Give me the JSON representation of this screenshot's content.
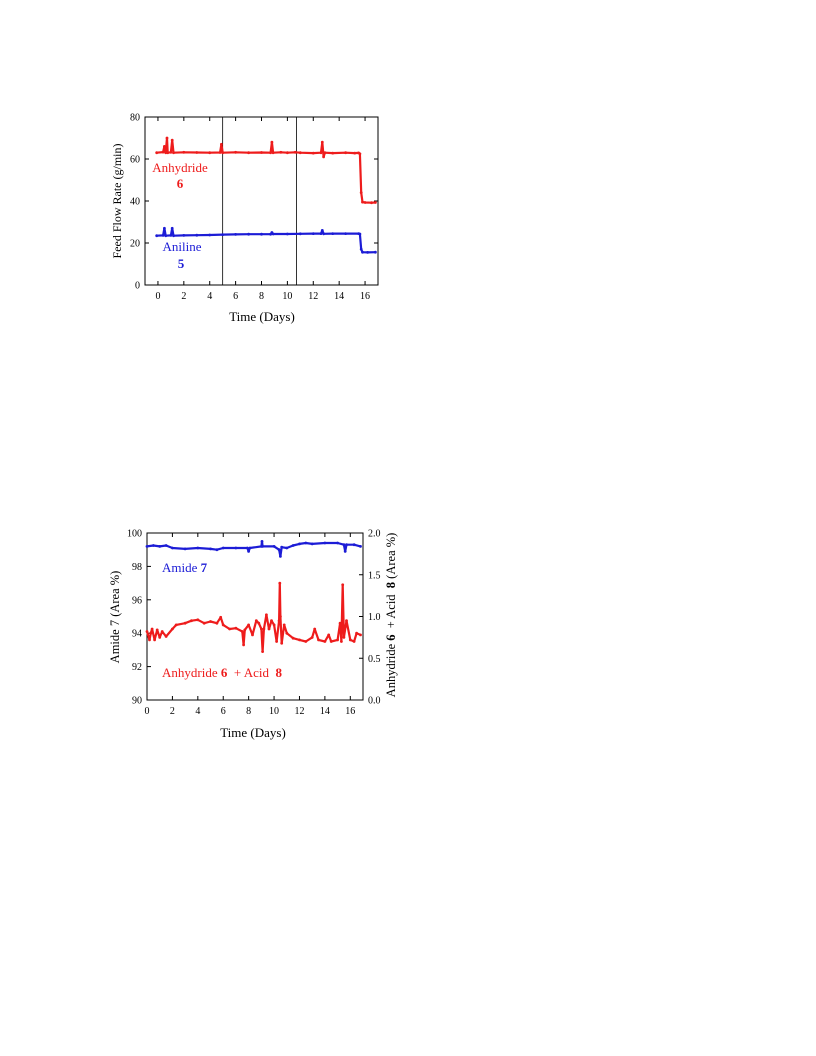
{
  "colors": {
    "red": "#ee1c1c",
    "blue": "#1c1cd6",
    "axis": "#000000"
  },
  "chart_data": [
    {
      "type": "line",
      "ylabel": "Feed Flow Rate (g/min)",
      "xlabel": "Time (Days)",
      "xlim": [
        -1,
        17
      ],
      "ylim": [
        0,
        80
      ],
      "xticks": [
        "0",
        "2",
        "4",
        "6",
        "8",
        "10",
        "12",
        "14",
        "16"
      ],
      "yticks": [
        "0",
        "20",
        "40",
        "60",
        "80"
      ],
      "vlines_x": [
        5.0,
        10.7
      ],
      "annotations": [
        {
          "text": "Anhydride",
          "bold": "6",
          "color": "red"
        },
        {
          "text": "Aniline",
          "bold": "5",
          "color": "blue"
        }
      ],
      "series": [
        {
          "label": "Anhydride 6",
          "color": "red",
          "points": [
            [
              -0.1,
              63
            ],
            [
              0.4,
              63.3
            ],
            [
              0.5,
              66
            ],
            [
              0.6,
              63
            ],
            [
              0.7,
              70
            ],
            [
              0.75,
              63
            ],
            [
              1.0,
              63.2
            ],
            [
              1.1,
              69
            ],
            [
              1.2,
              63
            ],
            [
              2,
              63.2
            ],
            [
              3,
              63.1
            ],
            [
              4,
              63
            ],
            [
              4.8,
              63.1
            ],
            [
              4.9,
              67
            ],
            [
              5.0,
              63
            ],
            [
              6,
              63.2
            ],
            [
              7,
              63
            ],
            [
              8,
              63.1
            ],
            [
              8.7,
              63
            ],
            [
              8.8,
              68
            ],
            [
              8.9,
              63
            ],
            [
              9.5,
              63.2
            ],
            [
              10,
              63
            ],
            [
              10.6,
              63.2
            ],
            [
              11,
              63
            ],
            [
              12,
              62.8
            ],
            [
              12.6,
              63
            ],
            [
              12.7,
              68
            ],
            [
              12.8,
              61
            ],
            [
              12.9,
              63
            ],
            [
              13.5,
              62.8
            ],
            [
              14.5,
              63
            ],
            [
              15.2,
              62.8
            ],
            [
              15.5,
              62.9
            ],
            [
              15.6,
              62.5
            ],
            [
              15.7,
              44
            ],
            [
              15.8,
              39.5
            ],
            [
              16,
              39.3
            ],
            [
              16.5,
              39.2
            ],
            [
              16.8,
              39.3
            ]
          ]
        },
        {
          "label": "Aniline 5",
          "color": "blue",
          "points": [
            [
              -0.1,
              23.5
            ],
            [
              0.4,
              23.6
            ],
            [
              0.5,
              27
            ],
            [
              0.6,
              23.5
            ],
            [
              1.0,
              23.6
            ],
            [
              1.1,
              27
            ],
            [
              1.2,
              23.5
            ],
            [
              2,
              23.6
            ],
            [
              3,
              23.7
            ],
            [
              4,
              23.8
            ],
            [
              5,
              24
            ],
            [
              6,
              24.1
            ],
            [
              7,
              24.2
            ],
            [
              8,
              24.2
            ],
            [
              8.7,
              24.2
            ],
            [
              8.8,
              25
            ],
            [
              8.9,
              24.3
            ],
            [
              10,
              24.3
            ],
            [
              11,
              24.4
            ],
            [
              12,
              24.5
            ],
            [
              12.6,
              24.5
            ],
            [
              12.7,
              26
            ],
            [
              12.8,
              24.4
            ],
            [
              13.5,
              24.5
            ],
            [
              14.5,
              24.5
            ],
            [
              15.5,
              24.5
            ],
            [
              15.6,
              24.3
            ],
            [
              15.7,
              17
            ],
            [
              15.8,
              15.6
            ],
            [
              16.2,
              15.5
            ],
            [
              16.8,
              15.6
            ]
          ]
        }
      ]
    },
    {
      "type": "line",
      "ylabel": "Amide 7 (Area %)",
      "y2label": "Anhydride 6 + Acid 8 (Area %)",
      "xlabel": "Time (Days)",
      "xlim": [
        0,
        17
      ],
      "ylim": [
        90,
        100
      ],
      "y2lim": [
        0,
        2
      ],
      "xticks": [
        "0",
        "2",
        "4",
        "6",
        "8",
        "10",
        "12",
        "14",
        "16"
      ],
      "yticks": [
        "90",
        "92",
        "94",
        "96",
        "98",
        "100"
      ],
      "y2ticks": [
        "0.0",
        "0.5",
        "1.0",
        "1.5",
        "2.0"
      ],
      "annotations": [
        {
          "text": "Amide",
          "bold": "7",
          "color": "blue"
        },
        {
          "text": "Anhydride",
          "bold": "6",
          "tail": " + Acid ",
          "bold2": "8",
          "color": "red"
        }
      ],
      "series": [
        {
          "label": "Amide 7",
          "color": "blue",
          "axis": "left",
          "points": [
            [
              0,
              99.2
            ],
            [
              0.5,
              99.25
            ],
            [
              1,
              99.2
            ],
            [
              1.5,
              99.25
            ],
            [
              2,
              99.1
            ],
            [
              3,
              99.05
            ],
            [
              4,
              99.1
            ],
            [
              5,
              99.05
            ],
            [
              5.5,
              99.0
            ],
            [
              6,
              99.1
            ],
            [
              7,
              99.1
            ],
            [
              7.9,
              99.1
            ],
            [
              8,
              98.9
            ],
            [
              8.1,
              99.1
            ],
            [
              9,
              99.2
            ],
            [
              9.05,
              99.5
            ],
            [
              9.1,
              99.2
            ],
            [
              10,
              99.2
            ],
            [
              10.4,
              99.0
            ],
            [
              10.5,
              98.6
            ],
            [
              10.6,
              99.15
            ],
            [
              11,
              99.1
            ],
            [
              11.5,
              99.25
            ],
            [
              12,
              99.35
            ],
            [
              12.5,
              99.4
            ],
            [
              13,
              99.35
            ],
            [
              14,
              99.4
            ],
            [
              15,
              99.4
            ],
            [
              15.5,
              99.3
            ],
            [
              15.6,
              98.9
            ],
            [
              15.7,
              99.3
            ],
            [
              16.3,
              99.3
            ],
            [
              16.8,
              99.2
            ]
          ]
        },
        {
          "label": "Anhydride 6 + Acid 8",
          "color": "red",
          "axis": "right",
          "points": [
            [
              0,
              0.82
            ],
            [
              0.2,
              0.72
            ],
            [
              0.3,
              0.8
            ],
            [
              0.4,
              0.85
            ],
            [
              0.6,
              0.72
            ],
            [
              0.8,
              0.84
            ],
            [
              1.0,
              0.75
            ],
            [
              1.2,
              0.82
            ],
            [
              1.5,
              0.76
            ],
            [
              2,
              0.85
            ],
            [
              2.3,
              0.9
            ],
            [
              3,
              0.92
            ],
            [
              3.5,
              0.95
            ],
            [
              4,
              0.96
            ],
            [
              4.5,
              0.92
            ],
            [
              5,
              0.94
            ],
            [
              5.5,
              0.92
            ],
            [
              5.8,
              0.99
            ],
            [
              6.0,
              0.9
            ],
            [
              6.5,
              0.85
            ],
            [
              7,
              0.86
            ],
            [
              7.5,
              0.82
            ],
            [
              7.6,
              0.66
            ],
            [
              7.7,
              0.84
            ],
            [
              8,
              0.9
            ],
            [
              8.3,
              0.78
            ],
            [
              8.6,
              0.95
            ],
            [
              8.8,
              0.92
            ],
            [
              9,
              0.85
            ],
            [
              9.1,
              0.58
            ],
            [
              9.2,
              0.85
            ],
            [
              9.4,
              1.02
            ],
            [
              9.6,
              0.85
            ],
            [
              9.8,
              0.95
            ],
            [
              10,
              0.9
            ],
            [
              10.2,
              0.7
            ],
            [
              10.4,
              0.95
            ],
            [
              10.45,
              1.4
            ],
            [
              10.5,
              1.0
            ],
            [
              10.6,
              0.68
            ],
            [
              10.8,
              0.9
            ],
            [
              11,
              0.8
            ],
            [
              11.5,
              0.74
            ],
            [
              12,
              0.72
            ],
            [
              12.5,
              0.7
            ],
            [
              13,
              0.75
            ],
            [
              13.2,
              0.85
            ],
            [
              13.5,
              0.72
            ],
            [
              14,
              0.7
            ],
            [
              14.3,
              0.78
            ],
            [
              14.5,
              0.7
            ],
            [
              15,
              0.72
            ],
            [
              15.2,
              0.92
            ],
            [
              15.3,
              0.7
            ],
            [
              15.4,
              1.38
            ],
            [
              15.5,
              0.75
            ],
            [
              15.7,
              0.95
            ],
            [
              16,
              0.72
            ],
            [
              16.3,
              0.7
            ],
            [
              16.5,
              0.8
            ],
            [
              16.8,
              0.78
            ]
          ]
        }
      ]
    }
  ]
}
